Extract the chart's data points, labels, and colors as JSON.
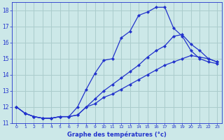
{
  "title": "Graphe des températures (°c)",
  "bg_color": "#cce8e8",
  "grid_color": "#aacccc",
  "line_color": "#2233cc",
  "xlim": [
    -0.5,
    23.5
  ],
  "ylim": [
    11,
    18.5
  ],
  "yticks": [
    11,
    12,
    13,
    14,
    15,
    16,
    17,
    18
  ],
  "xticks": [
    0,
    1,
    2,
    3,
    4,
    5,
    6,
    7,
    8,
    9,
    10,
    11,
    12,
    13,
    14,
    15,
    16,
    17,
    18,
    19,
    20,
    21,
    22,
    23
  ],
  "line1_x": [
    0,
    1,
    2,
    3,
    4,
    5,
    6,
    7,
    8,
    9,
    10,
    11,
    12,
    13,
    14,
    15,
    16,
    17,
    18,
    19,
    20,
    21,
    22,
    23
  ],
  "line1_y": [
    12.0,
    11.6,
    11.4,
    11.3,
    11.3,
    11.4,
    11.4,
    12.0,
    13.1,
    14.1,
    14.9,
    15.0,
    16.3,
    16.7,
    17.7,
    17.9,
    18.2,
    18.2,
    16.9,
    16.4,
    15.5,
    15.0,
    14.8,
    14.7
  ],
  "line2_x": [
    0,
    1,
    2,
    3,
    4,
    5,
    6,
    7,
    8,
    9,
    10,
    11,
    12,
    13,
    14,
    15,
    16,
    17,
    18,
    19,
    20,
    21,
    22,
    23
  ],
  "line2_y": [
    12.0,
    11.6,
    11.4,
    11.3,
    11.3,
    11.4,
    11.4,
    11.5,
    12.0,
    12.5,
    13.0,
    13.4,
    13.8,
    14.2,
    14.6,
    15.1,
    15.5,
    15.8,
    16.4,
    16.5,
    15.9,
    15.5,
    15.0,
    14.8
  ],
  "line3_x": [
    0,
    1,
    2,
    3,
    4,
    5,
    6,
    7,
    8,
    9,
    10,
    11,
    12,
    13,
    14,
    15,
    16,
    17,
    18,
    19,
    20,
    21,
    22,
    23
  ],
  "line3_y": [
    12.0,
    11.6,
    11.4,
    11.3,
    11.3,
    11.4,
    11.4,
    11.5,
    12.0,
    12.2,
    12.6,
    12.8,
    13.1,
    13.4,
    13.7,
    14.0,
    14.3,
    14.6,
    14.8,
    15.0,
    15.2,
    15.1,
    15.0,
    14.8
  ]
}
